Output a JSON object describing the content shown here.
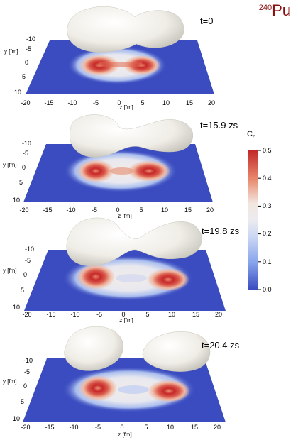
{
  "title": {
    "mass": "240",
    "element": "Pu"
  },
  "colorbar": {
    "label_main": "C",
    "label_sub": "n",
    "ticks": [
      "0.5",
      "0.4",
      "0.3",
      "0.2",
      "0.1",
      "0.0"
    ]
  },
  "panels": [
    {
      "time": "t=0",
      "y_label": "y [fm]",
      "y_ticks": [
        "-10",
        "-5",
        "0",
        "5",
        "10"
      ],
      "z_label": "z [fm]",
      "z_ticks": [
        "-20",
        "-15",
        "-10",
        "-5",
        "0",
        "5",
        "10",
        "15",
        "20"
      ]
    },
    {
      "time": "t=15.9 zs",
      "y_label": "y [fm]",
      "y_ticks": [
        "-10",
        "-5",
        "0",
        "5",
        "10"
      ],
      "z_label": "z [fm]",
      "z_ticks": [
        "-20",
        "-15",
        "-10",
        "-5",
        "0",
        "5",
        "10",
        "15",
        "20"
      ]
    },
    {
      "time": "t=19.8 zs",
      "y_label": "y [fm]",
      "y_ticks": [
        "-10",
        "-5",
        "0",
        "5",
        "10"
      ],
      "z_label": "z [fm]",
      "z_ticks": [
        "-20",
        "-15",
        "-10",
        "-5",
        "0",
        "5",
        "10",
        "15",
        "20"
      ]
    },
    {
      "time": "t=20.4 zs",
      "y_label": "y [fm]",
      "y_ticks": [
        "-10",
        "-5",
        "0",
        "5",
        "10"
      ],
      "z_label": "z [fm]",
      "z_ticks": [
        "-20",
        "-15",
        "-10",
        "-5",
        "0",
        "5",
        "10",
        "15",
        "20"
      ]
    }
  ],
  "colors": {
    "plane": "#3b4cc0",
    "hot": "#c0282a",
    "surface": "#f3f1ea"
  }
}
